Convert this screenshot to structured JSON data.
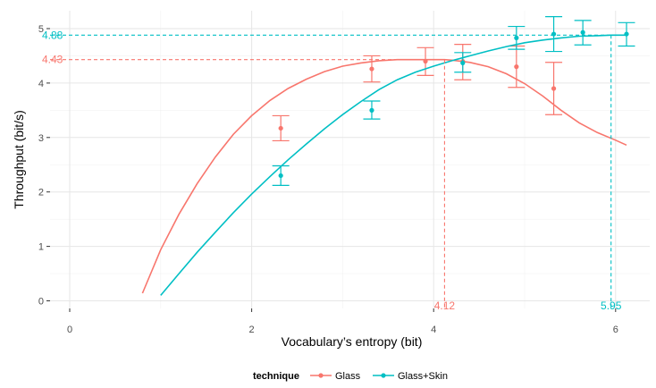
{
  "chart_data": {
    "type": "scatter",
    "title": "",
    "xlabel": "Vocabulary’s entropy (bit)",
    "ylabel": "Throughput (bit/s)",
    "xlim": [
      -0.5,
      6.4
    ],
    "ylim": [
      -0.2,
      5.3
    ],
    "x_ticks": [
      "0",
      "2",
      "4",
      "6"
    ],
    "y_ticks": [
      "0",
      "1",
      "2",
      "3",
      "4",
      "5"
    ],
    "grid": true,
    "legend_position": "bottom",
    "legend": {
      "title": "technique",
      "entries": [
        "Glass",
        "Glass+Skin"
      ]
    },
    "series": [
      {
        "name": "Glass",
        "color": "#F8766D",
        "points": [
          {
            "x": 2.32,
            "y": 3.17,
            "ymin": 2.94,
            "ymax": 3.4
          },
          {
            "x": 3.32,
            "y": 4.26,
            "ymin": 4.02,
            "ymax": 4.5
          },
          {
            "x": 3.91,
            "y": 4.4,
            "ymin": 4.14,
            "ymax": 4.65
          },
          {
            "x": 4.32,
            "y": 4.4,
            "ymin": 4.06,
            "ymax": 4.71
          },
          {
            "x": 4.91,
            "y": 4.3,
            "ymin": 3.92,
            "ymax": 4.68
          },
          {
            "x": 5.32,
            "y": 3.9,
            "ymin": 3.42,
            "ymax": 4.38
          }
        ],
        "fit": [
          [
            0.8,
            0.14
          ],
          [
            1.0,
            0.94
          ],
          [
            1.2,
            1.59
          ],
          [
            1.4,
            2.15
          ],
          [
            1.6,
            2.64
          ],
          [
            1.8,
            3.06
          ],
          [
            2.0,
            3.4
          ],
          [
            2.2,
            3.68
          ],
          [
            2.4,
            3.9
          ],
          [
            2.6,
            4.07
          ],
          [
            2.8,
            4.21
          ],
          [
            3.0,
            4.31
          ],
          [
            3.2,
            4.37
          ],
          [
            3.4,
            4.41
          ],
          [
            3.6,
            4.43
          ],
          [
            3.8,
            4.43
          ],
          [
            4.0,
            4.43
          ],
          [
            4.12,
            4.43
          ],
          [
            4.2,
            4.42
          ],
          [
            4.4,
            4.38
          ],
          [
            4.6,
            4.3
          ],
          [
            4.8,
            4.17
          ],
          [
            5.0,
            3.99
          ],
          [
            5.2,
            3.76
          ],
          [
            5.4,
            3.5
          ],
          [
            5.6,
            3.27
          ],
          [
            5.8,
            3.09
          ],
          [
            6.0,
            2.95
          ],
          [
            6.12,
            2.86
          ]
        ],
        "peak": {
          "x": 4.12,
          "y": 4.43,
          "x_label": "4.12",
          "y_label": "4.43"
        }
      },
      {
        "name": "Glass+Skin",
        "color": "#00BFC4",
        "points": [
          {
            "x": 2.32,
            "y": 2.3,
            "ymin": 2.12,
            "ymax": 2.48
          },
          {
            "x": 3.32,
            "y": 3.5,
            "ymin": 3.34,
            "ymax": 3.67
          },
          {
            "x": 4.32,
            "y": 4.37,
            "ymin": 4.2,
            "ymax": 4.56
          },
          {
            "x": 4.91,
            "y": 4.83,
            "ymin": 4.62,
            "ymax": 5.04
          },
          {
            "x": 5.32,
            "y": 4.9,
            "ymin": 4.58,
            "ymax": 5.22
          },
          {
            "x": 5.64,
            "y": 4.93,
            "ymin": 4.7,
            "ymax": 5.15
          },
          {
            "x": 6.12,
            "y": 4.9,
            "ymin": 4.68,
            "ymax": 5.11
          }
        ],
        "fit": [
          [
            1.0,
            0.1
          ],
          [
            1.2,
            0.5
          ],
          [
            1.4,
            0.89
          ],
          [
            1.6,
            1.26
          ],
          [
            1.8,
            1.62
          ],
          [
            2.0,
            1.96
          ],
          [
            2.2,
            2.28
          ],
          [
            2.4,
            2.59
          ],
          [
            2.6,
            2.88
          ],
          [
            2.8,
            3.16
          ],
          [
            3.0,
            3.42
          ],
          [
            3.2,
            3.66
          ],
          [
            3.4,
            3.88
          ],
          [
            3.6,
            4.06
          ],
          [
            3.8,
            4.2
          ],
          [
            4.0,
            4.31
          ],
          [
            4.2,
            4.41
          ],
          [
            4.4,
            4.5
          ],
          [
            4.6,
            4.59
          ],
          [
            4.8,
            4.67
          ],
          [
            5.0,
            4.74
          ],
          [
            5.2,
            4.79
          ],
          [
            5.4,
            4.83
          ],
          [
            5.6,
            4.86
          ],
          [
            5.8,
            4.87
          ],
          [
            5.95,
            4.88
          ],
          [
            6.12,
            4.88
          ]
        ],
        "peak": {
          "x": 5.95,
          "y": 4.88,
          "x_label": "5.95",
          "y_label": "4.88"
        }
      }
    ]
  }
}
